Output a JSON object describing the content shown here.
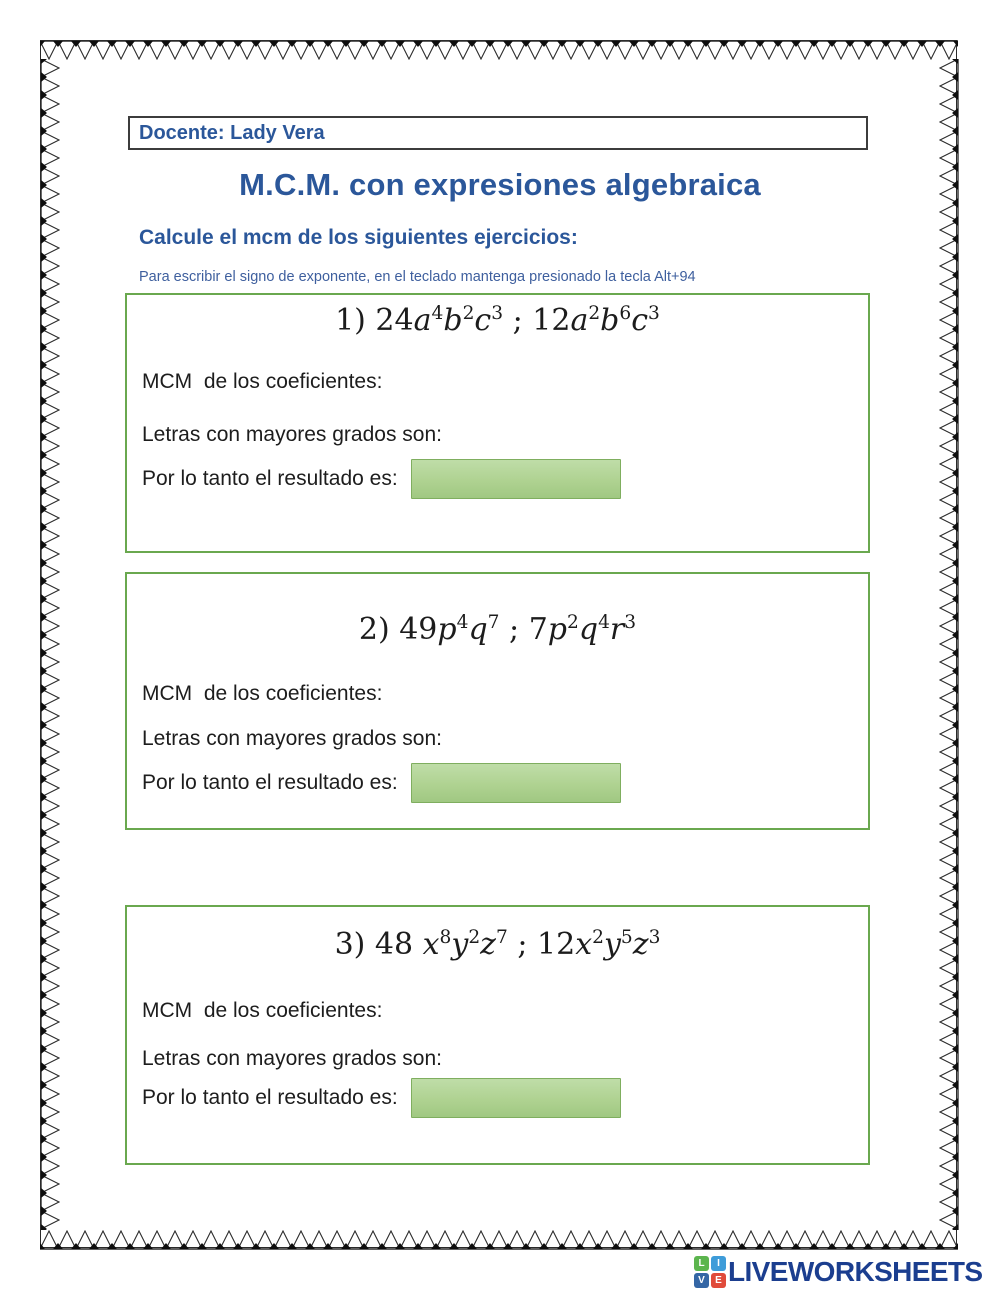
{
  "header": {
    "docente": "Docente: Lady Vera",
    "title": "M.C.M. con expresiones algebraica",
    "subtitle": "Calcule el mcm de los siguientes ejercicios:",
    "hint": "Para escribir el signo de exponente, en el teclado mantenga presionado la tecla Alt+94"
  },
  "labels": {
    "mcm": "MCM  de los coeficientes:",
    "letras": "Letras con mayores grados son:",
    "resultado": "Por lo tanto el resultado es:"
  },
  "exercises": [
    {
      "number": "1",
      "equation_text": "1) 24a^4 b^2 c^3 ; 12a^2 b^6 c^3",
      "equation": [
        {
          "k": "n",
          "v": "1) "
        },
        {
          "k": "n",
          "v": "24"
        },
        {
          "k": "v",
          "v": "a"
        },
        {
          "k": "s",
          "v": "4"
        },
        {
          "k": "v",
          "v": "b"
        },
        {
          "k": "s",
          "v": "2"
        },
        {
          "k": "v",
          "v": "c"
        },
        {
          "k": "s",
          "v": "3"
        },
        {
          "k": "n",
          "v": " ; "
        },
        {
          "k": "n",
          "v": "12"
        },
        {
          "k": "v",
          "v": "a"
        },
        {
          "k": "s",
          "v": "2"
        },
        {
          "k": "v",
          "v": "b"
        },
        {
          "k": "s",
          "v": "6"
        },
        {
          "k": "v",
          "v": "c"
        },
        {
          "k": "s",
          "v": "3"
        }
      ],
      "answer": ""
    },
    {
      "number": "2",
      "equation_text": "2) 49p^4 q^7 ; 7p^2 q^4 r^3",
      "equation": [
        {
          "k": "n",
          "v": "2) "
        },
        {
          "k": "n",
          "v": "49"
        },
        {
          "k": "v",
          "v": "p"
        },
        {
          "k": "s",
          "v": "4"
        },
        {
          "k": "v",
          "v": "q"
        },
        {
          "k": "s",
          "v": "7"
        },
        {
          "k": "n",
          "v": " ; "
        },
        {
          "k": "n",
          "v": "7"
        },
        {
          "k": "v",
          "v": "p"
        },
        {
          "k": "s",
          "v": "2"
        },
        {
          "k": "v",
          "v": "q"
        },
        {
          "k": "s",
          "v": "4"
        },
        {
          "k": "v",
          "v": "r"
        },
        {
          "k": "s",
          "v": "3"
        }
      ],
      "answer": ""
    },
    {
      "number": "3",
      "equation_text": "3) 48 x^8 y^2 z^7 ; 12x^2 y^5 z^3",
      "equation": [
        {
          "k": "n",
          "v": "3) "
        },
        {
          "k": "n",
          "v": "48 "
        },
        {
          "k": "v",
          "v": "x"
        },
        {
          "k": "s",
          "v": "8"
        },
        {
          "k": "v",
          "v": "y"
        },
        {
          "k": "s",
          "v": "2"
        },
        {
          "k": "v",
          "v": "z"
        },
        {
          "k": "s",
          "v": "7"
        },
        {
          "k": "n",
          "v": " ; "
        },
        {
          "k": "n",
          "v": "12"
        },
        {
          "k": "v",
          "v": "x"
        },
        {
          "k": "s",
          "v": "2"
        },
        {
          "k": "v",
          "v": "y"
        },
        {
          "k": "s",
          "v": "5"
        },
        {
          "k": "v",
          "v": "z"
        },
        {
          "k": "s",
          "v": "3"
        }
      ],
      "answer": ""
    }
  ],
  "footer": {
    "logo_text": "LIVEWORKSHEETS",
    "tiles": [
      {
        "letter": "L",
        "color": "#5CB54E"
      },
      {
        "letter": "I",
        "color": "#3E9CD9"
      },
      {
        "letter": "V",
        "color": "#3466A5"
      },
      {
        "letter": "E",
        "color": "#E04B3B"
      }
    ]
  },
  "colors": {
    "header_blue": "#2B579A",
    "hint_blue": "#3E5F9E",
    "exercise_border_green": "#6AA84F",
    "answer_fill_top": "#BFDDA8",
    "answer_fill_bottom": "#A0C882",
    "answer_border_green": "#7FAE5F",
    "logo_navy": "#1B3E8F",
    "border_ink": "#2B2B2B"
  }
}
